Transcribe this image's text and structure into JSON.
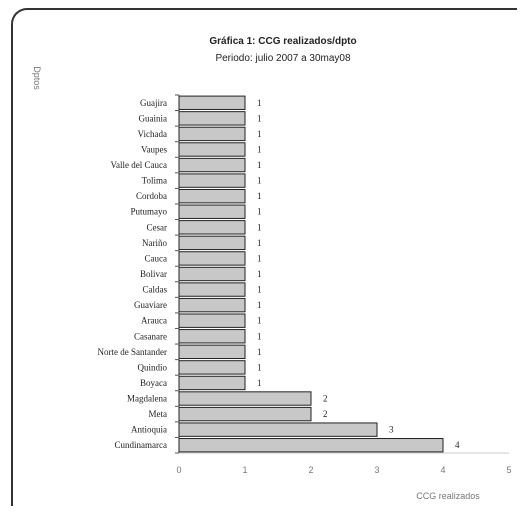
{
  "chart_data": {
    "type": "bar",
    "orientation": "horizontal",
    "title": "Gráfica 1: CCG realizados/dpto",
    "subtitle": "Periodo: julio 2007 a 30may08",
    "xlabel": "CCG realizados",
    "ylabel": "Dptos",
    "xlim": [
      0,
      5
    ],
    "xticks": [
      "0",
      "1",
      "2",
      "3",
      "4",
      "5"
    ],
    "grid": false,
    "legend": "none",
    "categories": [
      "Guajira",
      "Guainia",
      "Vichada",
      "Vaupes",
      "Valle del Cauca",
      "Tolima",
      "Cordoba",
      "Putumayo",
      "Cesar",
      "Nariño",
      "Cauca",
      "Bolivar",
      "Caldas",
      "Guaviare",
      "Arauca",
      "Casanare",
      "Norte de Santander",
      "Quindio",
      "Boyaca",
      "Magdalena",
      "Meta",
      "Antioquia",
      "Cundinamarca"
    ],
    "values": [
      1,
      1,
      1,
      1,
      1,
      1,
      1,
      1,
      1,
      1,
      1,
      1,
      1,
      1,
      1,
      1,
      1,
      1,
      1,
      2,
      2,
      3,
      4
    ],
    "bar_color": "#c8c8c8",
    "bar_edge_color": "#222222"
  }
}
